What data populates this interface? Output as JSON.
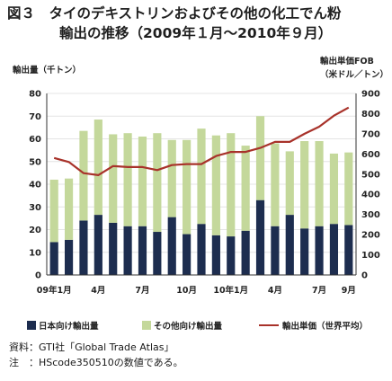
{
  "title": {
    "line1": "図３　タイのデキストリンおよびその他の化工でん粉",
    "line2": "輸出の推移（2009年１月～2010年９月）"
  },
  "colors": {
    "japan": "#1d2d4f",
    "other": "#c4d89b",
    "price": "#a8322a",
    "axis": "#333333",
    "grid": "#e4e4e4"
  },
  "chart_data": {
    "type": "bar",
    "stacked": true,
    "categories": [
      "09年1月",
      "2",
      "3",
      "4",
      "5",
      "6",
      "7",
      "8",
      "9",
      "10月",
      "11",
      "12",
      "10年1月",
      "2",
      "3",
      "4",
      "5",
      "6",
      "7",
      "8",
      "9月"
    ],
    "tick_labels": [
      "09年1月",
      "",
      "",
      "4月",
      "",
      "",
      "7月",
      "",
      "",
      "10月",
      "",
      "",
      "10年1月",
      "",
      "",
      "4月",
      "",
      "",
      "7月",
      "",
      "9月"
    ],
    "series": [
      {
        "name": "日本向け輸出量",
        "type": "bar",
        "axis": "left",
        "values": [
          14.5,
          15.5,
          24,
          26.5,
          23,
          21.5,
          21.5,
          19,
          25.5,
          18,
          22.5,
          17.5,
          17,
          19.5,
          33,
          21.5,
          26.5,
          20.5,
          21.5,
          22.5,
          22
        ]
      },
      {
        "name": "その他向け輸出量",
        "type": "bar",
        "axis": "left",
        "values": [
          27.5,
          27,
          39.5,
          42,
          39,
          41,
          39.5,
          43.5,
          34,
          41.5,
          42,
          44,
          45.5,
          37.5,
          37,
          36.5,
          28,
          38.5,
          37.5,
          31,
          32
        ]
      },
      {
        "name": "輸出単価（世界平均）",
        "type": "line",
        "axis": "right",
        "values": [
          580,
          560,
          505,
          495,
          540,
          535,
          535,
          520,
          545,
          550,
          550,
          590,
          610,
          610,
          630,
          660,
          660,
          700,
          735,
          790,
          830
        ]
      }
    ],
    "ylabel_left": "輸出量（千トン）",
    "ylabel_right_line1": "輸出単価FOB",
    "ylabel_right_line2": "（米ドル／トン）",
    "ylim_left": [
      0,
      80
    ],
    "ylim_right": [
      0,
      900
    ],
    "yticks_left": [
      0,
      10,
      20,
      30,
      40,
      50,
      60,
      70,
      80
    ],
    "yticks_right": [
      0,
      100,
      200,
      300,
      400,
      500,
      600,
      700,
      800,
      900
    ],
    "grid": true,
    "legend_position": "bottom"
  },
  "legend": {
    "japan": "日本向け輸出量",
    "other": "その他向け輸出量",
    "price": "輸出単価（世界平均）"
  },
  "notes": {
    "source": "資料：GTI社「Global Trade Atlas」",
    "note": "注　：HScode350510の数値である。"
  }
}
